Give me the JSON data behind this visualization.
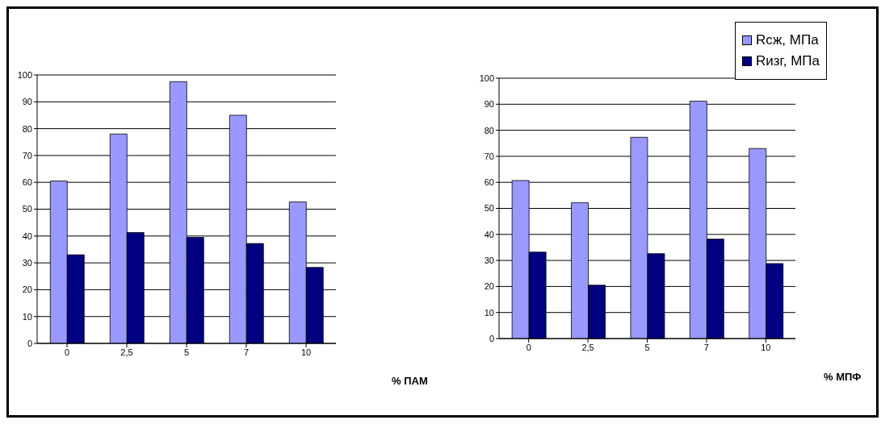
{
  "chart_data": [
    {
      "type": "bar",
      "xlabel": "% ПАМ",
      "categories": [
        "0",
        "2,5",
        "5",
        "7",
        "10"
      ],
      "series": [
        {
          "color": "#9999ff",
          "values": [
            60.5,
            78,
            97.5,
            85,
            52.7
          ]
        },
        {
          "color": "#000080",
          "values": [
            33,
            41.3,
            39.5,
            37.2,
            28.3
          ]
        }
      ],
      "ylim": [
        0,
        100
      ],
      "yticks": [
        0,
        10,
        20,
        30,
        40,
        50,
        60,
        70,
        80,
        90,
        100
      ],
      "grid": "y",
      "legend": false
    },
    {
      "type": "bar",
      "xlabel": "% МПФ",
      "categories": [
        "0",
        "2,5",
        "5",
        "7",
        "10"
      ],
      "series": [
        {
          "name": "Rсж, МПа",
          "color": "#9999ff",
          "values": [
            60.7,
            52.2,
            77.3,
            91.2,
            73
          ]
        },
        {
          "name": "Rизг, МПа",
          "color": "#000080",
          "values": [
            33.2,
            20.5,
            32.6,
            38.2,
            28.8
          ]
        }
      ],
      "ylim": [
        0,
        100
      ],
      "yticks": [
        0,
        10,
        20,
        30,
        40,
        50,
        60,
        70,
        80,
        90,
        100
      ],
      "grid": "y",
      "legend": "top right"
    }
  ]
}
